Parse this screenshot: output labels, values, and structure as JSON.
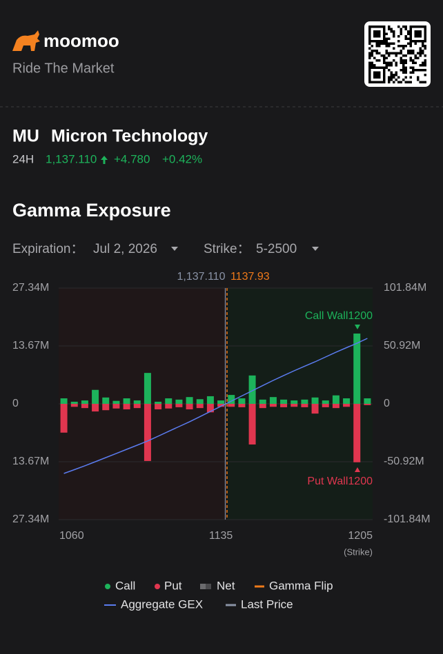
{
  "header": {
    "brand": "moomoo",
    "tagline": "Ride The Market"
  },
  "quote": {
    "symbol": "MU",
    "name": "Micron Technology",
    "session": "24H",
    "price": "1,137.110",
    "change": "+4.780",
    "change_pct": "+0.42%"
  },
  "section_title": "Gamma Exposure",
  "filters": [
    {
      "label": "Expiration：",
      "value": "Jul 2, 2026"
    },
    {
      "label": "Strike：",
      "value": "5-2500"
    }
  ],
  "chart_data": {
    "type": "bar",
    "x": [
      1060,
      1065,
      1070,
      1075,
      1080,
      1085,
      1090,
      1095,
      1100,
      1105,
      1110,
      1115,
      1120,
      1125,
      1130,
      1135,
      1140,
      1145,
      1150,
      1155,
      1160,
      1165,
      1170,
      1175,
      1180,
      1185,
      1190,
      1195,
      1200,
      1205
    ],
    "series": [
      {
        "name": "Call",
        "color": "#1db35b",
        "values": [
          1.3,
          0.5,
          0.8,
          3.3,
          1.5,
          0.7,
          1.3,
          0.8,
          7.3,
          0.5,
          1.3,
          1.0,
          1.6,
          1.1,
          1.8,
          0.8,
          2.1,
          1.3,
          6.7,
          1.0,
          1.6,
          1.0,
          0.8,
          1.0,
          1.5,
          0.8,
          2.0,
          1.3,
          16.6,
          1.3
        ]
      },
      {
        "name": "Put",
        "color": "#e0364f",
        "values": [
          -6.8,
          -0.7,
          -1.0,
          -1.8,
          -1.5,
          -1.1,
          -1.3,
          -1.0,
          -13.5,
          -1.3,
          -1.1,
          -0.8,
          -1.3,
          -1.0,
          -2.0,
          -0.7,
          -0.7,
          -0.8,
          -9.6,
          -1.0,
          -0.7,
          -0.8,
          -0.7,
          -0.8,
          -2.3,
          -0.8,
          -1.0,
          -0.7,
          -13.8,
          -0.3
        ]
      },
      {
        "name": "Aggregate GEX",
        "type": "line",
        "axis": "y2",
        "color": "#5b7cf0",
        "values": [
          -61.2,
          -57.9,
          -54.5,
          -50.9,
          -47.3,
          -43.7,
          -40.0,
          -36.4,
          -32.7,
          -28.5,
          -24.2,
          -20.0,
          -15.8,
          -11.3,
          -6.7,
          -2.2,
          2.4,
          7.0,
          11.5,
          16.1,
          20.6,
          24.9,
          29.1,
          33.1,
          37.0,
          41.2,
          45.4,
          49.4,
          53.3,
          57.6
        ]
      }
    ],
    "net": {
      "name": "Net",
      "color": "#6b6b6e"
    },
    "gamma_flip": {
      "name": "Gamma Flip",
      "color": "#f07a1a",
      "value": 1137.93,
      "label": "1137.93"
    },
    "last_price": {
      "name": "Last Price",
      "color": "#8a93a6",
      "value": 1137.11,
      "label": "1,137.110"
    },
    "call_wall": "Call Wall1200",
    "put_wall": "Put Wall1200",
    "xlabel": "(Strike)",
    "xlim": [
      1057.5,
      1207.5
    ],
    "xticks": [
      1060,
      1135,
      1205
    ],
    "ylim": [
      -27.34,
      27.34
    ],
    "yticks": [
      {
        "value": 27.34,
        "label": "27.34M"
      },
      {
        "value": 13.67,
        "label": "13.67M"
      },
      0,
      {
        "value": -13.67,
        "label": "13.67M"
      },
      {
        "value": -27.34,
        "label": "27.34M"
      }
    ],
    "y2lim": [
      -101.84,
      101.84
    ],
    "y2ticks": [
      {
        "value": 101.84,
        "label": "101.84M"
      },
      {
        "value": 50.92,
        "label": "50.92M"
      },
      0,
      {
        "value": -50.92,
        "label": "-50.92M"
      },
      {
        "value": -101.84,
        "label": "-101.84M"
      }
    ],
    "grid": true
  }
}
